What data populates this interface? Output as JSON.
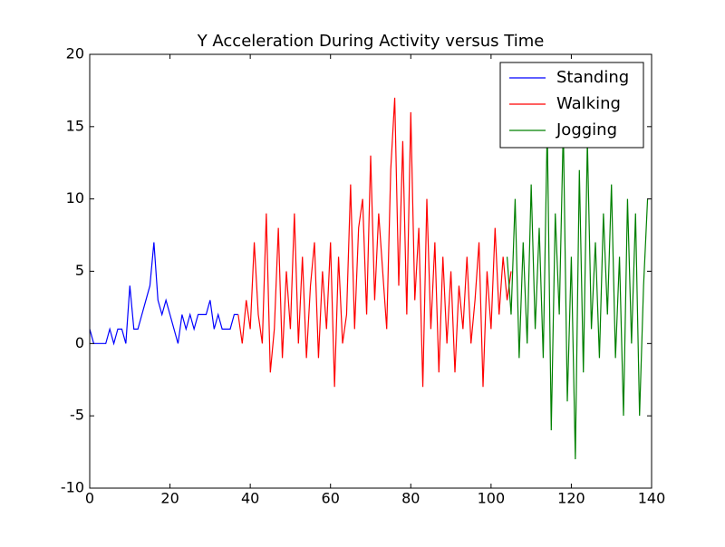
{
  "chart_data": {
    "type": "line",
    "title": "Y Acceleration During Activity versus Time",
    "xlim": [
      0,
      140
    ],
    "xticks": [
      0,
      20,
      40,
      60,
      80,
      100,
      120,
      140
    ],
    "ylim": [
      -10,
      20
    ],
    "yticks": [
      -10,
      -5,
      0,
      5,
      10,
      15,
      20
    ],
    "legend": "upper right",
    "series": [
      {
        "name": "Standing",
        "color": "#0000ff",
        "x": [
          0,
          1,
          2,
          3,
          4,
          5,
          6,
          7,
          8,
          9,
          10,
          11,
          12,
          13,
          14,
          15,
          16,
          17,
          18,
          19,
          20,
          21,
          22,
          23,
          24,
          25,
          26,
          27,
          28,
          29,
          30,
          31,
          32,
          33,
          34,
          35,
          36,
          37
        ],
        "values": [
          1,
          0,
          0,
          0,
          0,
          1,
          0,
          1,
          1,
          0,
          4,
          1,
          1,
          2,
          3,
          4,
          7,
          3,
          2,
          3,
          2,
          1,
          0,
          2,
          1,
          2,
          1,
          2,
          2,
          2,
          3,
          1,
          2,
          1,
          1,
          1,
          2,
          2
        ]
      },
      {
        "name": "Walking",
        "color": "#ff0000",
        "x": [
          37,
          38,
          39,
          40,
          41,
          42,
          43,
          44,
          45,
          46,
          47,
          48,
          49,
          50,
          51,
          52,
          53,
          54,
          55,
          56,
          57,
          58,
          59,
          60,
          61,
          62,
          63,
          64,
          65,
          66,
          67,
          68,
          69,
          70,
          71,
          72,
          73,
          74,
          75,
          76,
          77,
          78,
          79,
          80,
          81,
          82,
          83,
          84,
          85,
          86,
          87,
          88,
          89,
          90,
          91,
          92,
          93,
          94,
          95,
          96,
          97,
          98,
          99,
          100,
          101,
          102,
          103,
          104,
          105
        ],
        "values": [
          2,
          0,
          3,
          1,
          7,
          2,
          0,
          9,
          -2,
          1,
          8,
          -1,
          5,
          1,
          9,
          0,
          6,
          -1,
          4,
          7,
          -1,
          5,
          1,
          7,
          -3,
          6,
          0,
          2,
          11,
          1,
          8,
          10,
          2,
          13,
          3,
          9,
          5,
          1,
          12,
          17,
          4,
          14,
          2,
          16,
          3,
          8,
          -3,
          10,
          1,
          7,
          -2,
          6,
          0,
          5,
          -2,
          4,
          1,
          6,
          0,
          3,
          7,
          -3,
          5,
          1,
          8,
          2,
          6,
          3,
          5
        ]
      },
      {
        "name": "Jogging",
        "color": "#008000",
        "x": [
          104,
          105,
          106,
          107,
          108,
          109,
          110,
          111,
          112,
          113,
          114,
          115,
          116,
          117,
          118,
          119,
          120,
          121,
          122,
          123,
          124,
          125,
          126,
          127,
          128,
          129,
          130,
          131,
          132,
          133,
          134,
          135,
          136,
          137,
          138,
          139
        ],
        "values": [
          6,
          2,
          10,
          -1,
          7,
          0,
          11,
          1,
          8,
          -1,
          15,
          -6,
          9,
          2,
          15,
          -4,
          6,
          -8,
          12,
          -2,
          14,
          1,
          7,
          -1,
          9,
          2,
          11,
          -1,
          6,
          -5,
          10,
          0,
          9,
          -5,
          4,
          10
        ]
      }
    ]
  }
}
